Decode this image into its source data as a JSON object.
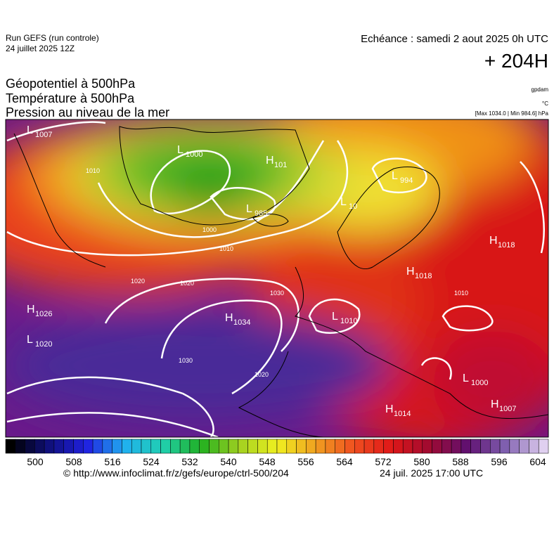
{
  "header": {
    "run": "Run GEFS (run controle)",
    "run_date": "24 juillet 2025 12Z",
    "valid": "Echéance : samedi 2 aout 2025 0h UTC",
    "lead": "+ 204H",
    "titles": [
      "Géopotentiel à 500hPa",
      "Température à 500hPa",
      "Pression au niveau de la mer"
    ],
    "unit_geo": "gpdam",
    "unit_temp": "°C",
    "pressure_range": "[Max 1034.0 | Min 984.6] hPa"
  },
  "centers": [
    {
      "letter": "L",
      "value": 1007
    },
    {
      "letter": "L",
      "value": 1000
    },
    {
      "letter": "H",
      "value": 101
    },
    {
      "letter": "L",
      "value": 994
    },
    {
      "letter": "L",
      "value": 10
    },
    {
      "letter": "L",
      "value": 985
    },
    {
      "letter": "H",
      "value": 1018
    },
    {
      "letter": "H",
      "value": 1018
    },
    {
      "letter": "H",
      "value": 1026
    },
    {
      "letter": "L",
      "value": 1020
    },
    {
      "letter": "H",
      "value": 1034
    },
    {
      "letter": "L",
      "value": 1010
    },
    {
      "letter": "L",
      "value": 1000
    },
    {
      "letter": "H",
      "value": 1007
    },
    {
      "letter": "H",
      "value": 1014
    }
  ],
  "isobar_labels": [
    1010,
    1000,
    1010,
    1020,
    1020,
    1030,
    1030,
    1020,
    1010
  ],
  "colorbar": {
    "ticks": [
      500,
      508,
      516,
      524,
      532,
      540,
      548,
      556,
      564,
      572,
      580,
      588,
      596,
      604
    ]
  },
  "footer": {
    "source": "© http://www.infoclimat.fr/z/gefs/europe/ctrl-500/204",
    "generated": "24 juil. 2025 17:00 UTC"
  }
}
